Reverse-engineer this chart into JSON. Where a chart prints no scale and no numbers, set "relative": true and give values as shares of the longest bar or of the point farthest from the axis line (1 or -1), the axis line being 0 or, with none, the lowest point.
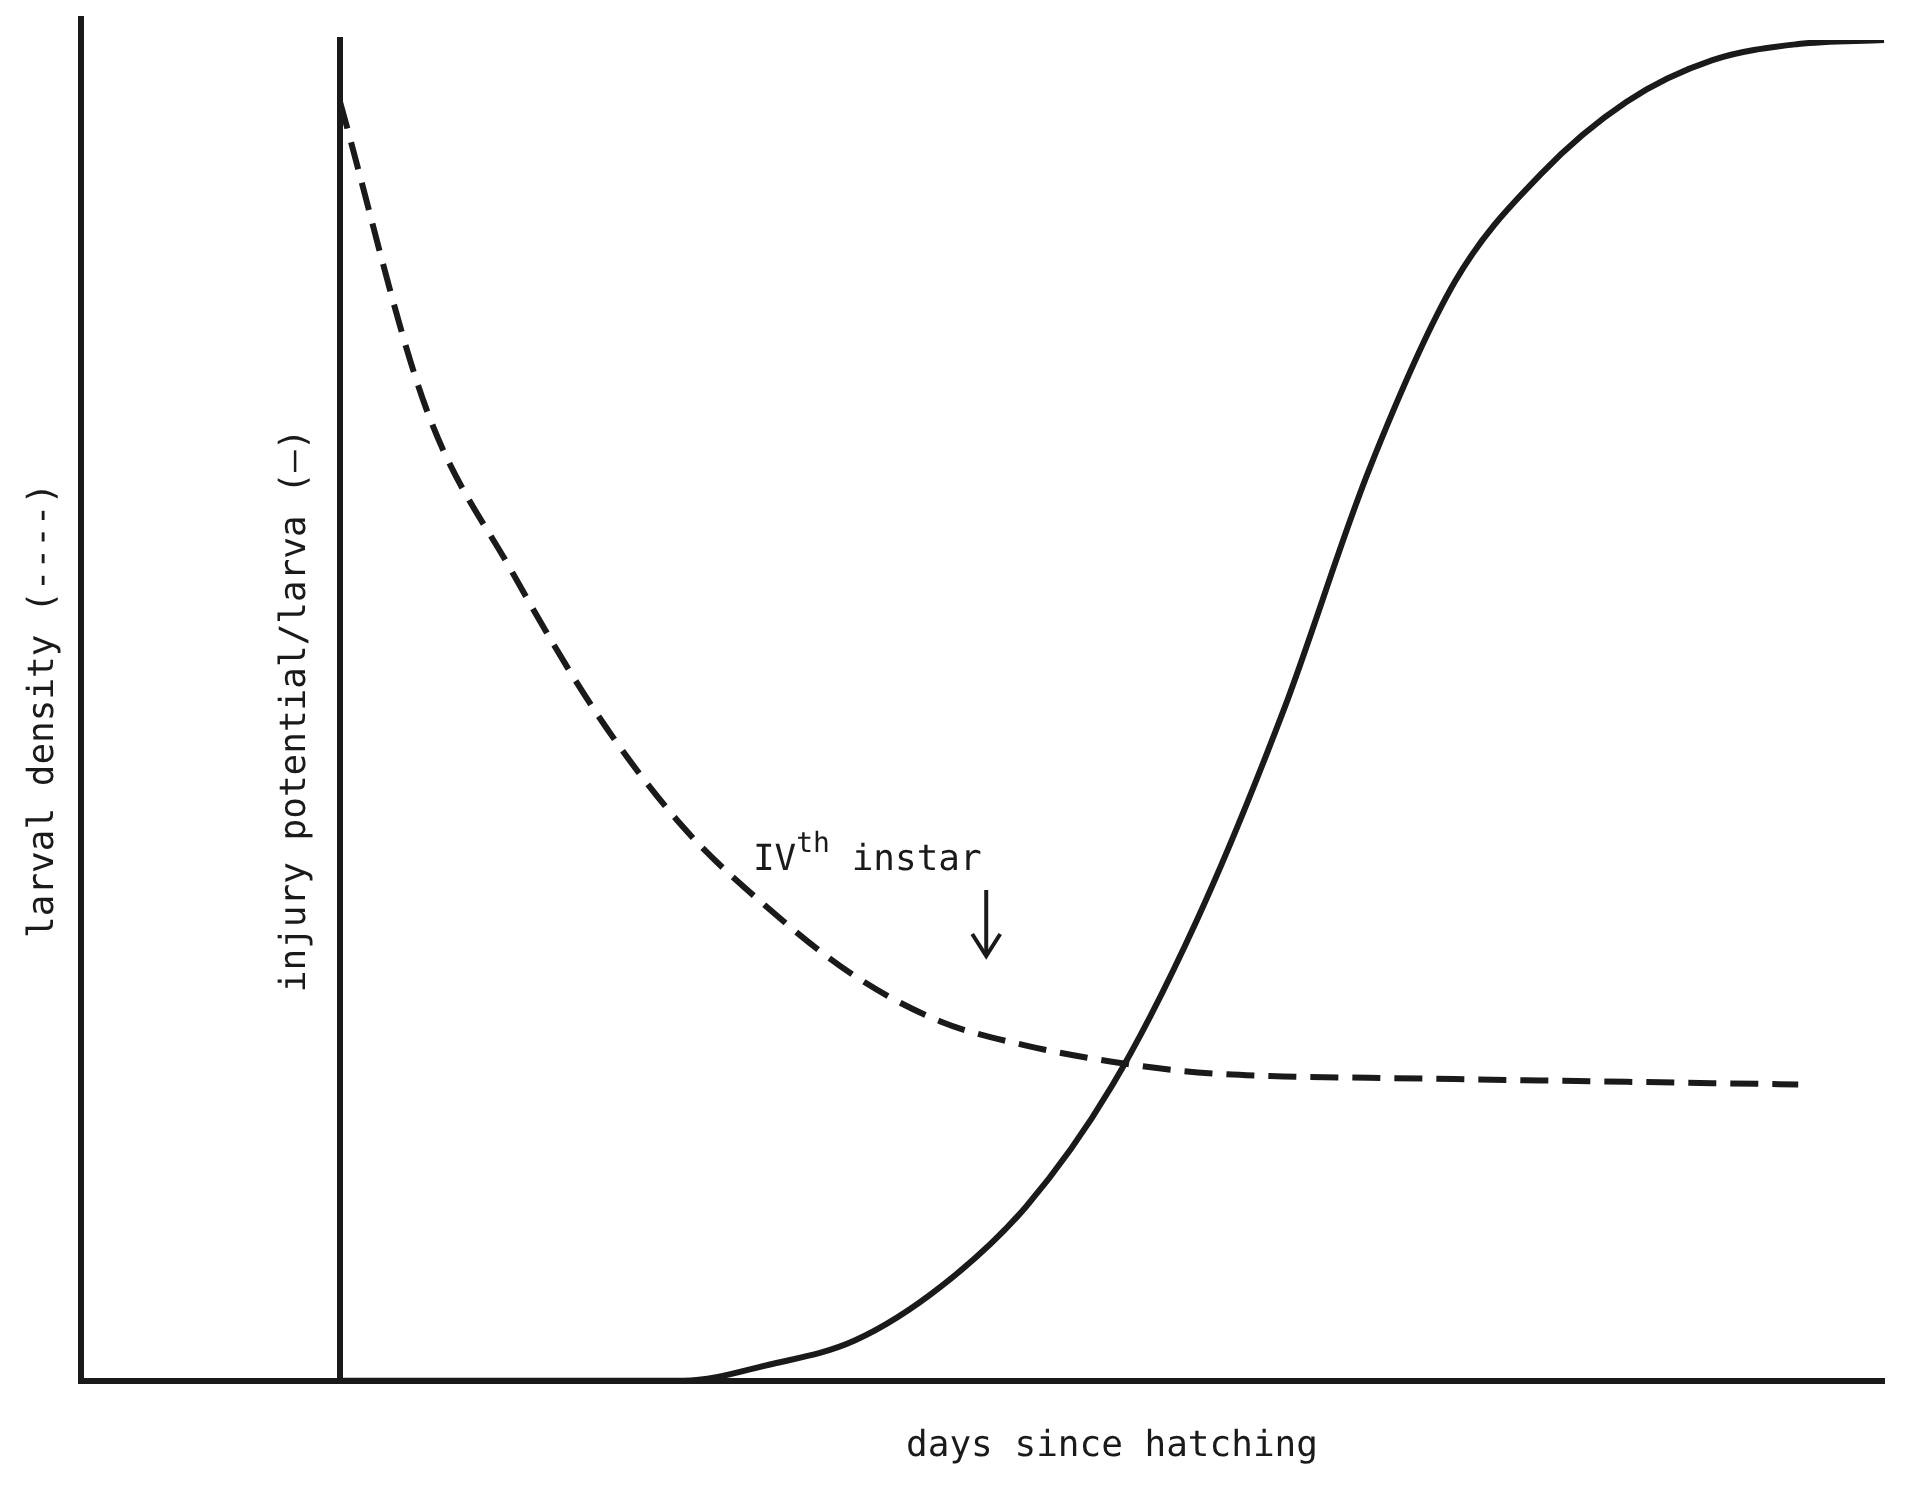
{
  "chart_data": {
    "type": "line",
    "relative": true,
    "xlabel": "days since hatching",
    "ylabel": "injury potential/larva (—)",
    "categories": [
      null,
      null,
      null,
      null,
      null,
      null,
      null,
      null,
      null,
      null,
      null,
      null,
      null,
      null,
      null,
      null,
      null,
      null,
      null
    ],
    "series": [
      {
        "color": "#1a1a1a",
        "line_style": "dashed",
        "values": [
          0.954,
          0.726,
          0.604,
          0.497,
          0.413,
          0.352,
          0.302,
          0.268,
          0.25,
          0.238,
          0.23,
          0.227,
          0.226,
          0.225,
          0.224,
          0.223,
          0.222,
          0.221,
          null
        ]
      },
      {
        "color": "#1a1a1a",
        "line_style": "solid",
        "values": [
          0,
          0,
          0,
          0,
          0,
          0.012,
          0.03,
          0.07,
          0.13,
          0.22,
          0.345,
          0.5,
          0.68,
          0.82,
          0.9,
          0.954,
          0.985,
          0.997,
          1
        ]
      }
    ],
    "annotations": [
      "larval density (----)",
      "IV$^{th}$ instar"
    ],
    "grid": false,
    "legend": false,
    "marker": "none"
  }
}
